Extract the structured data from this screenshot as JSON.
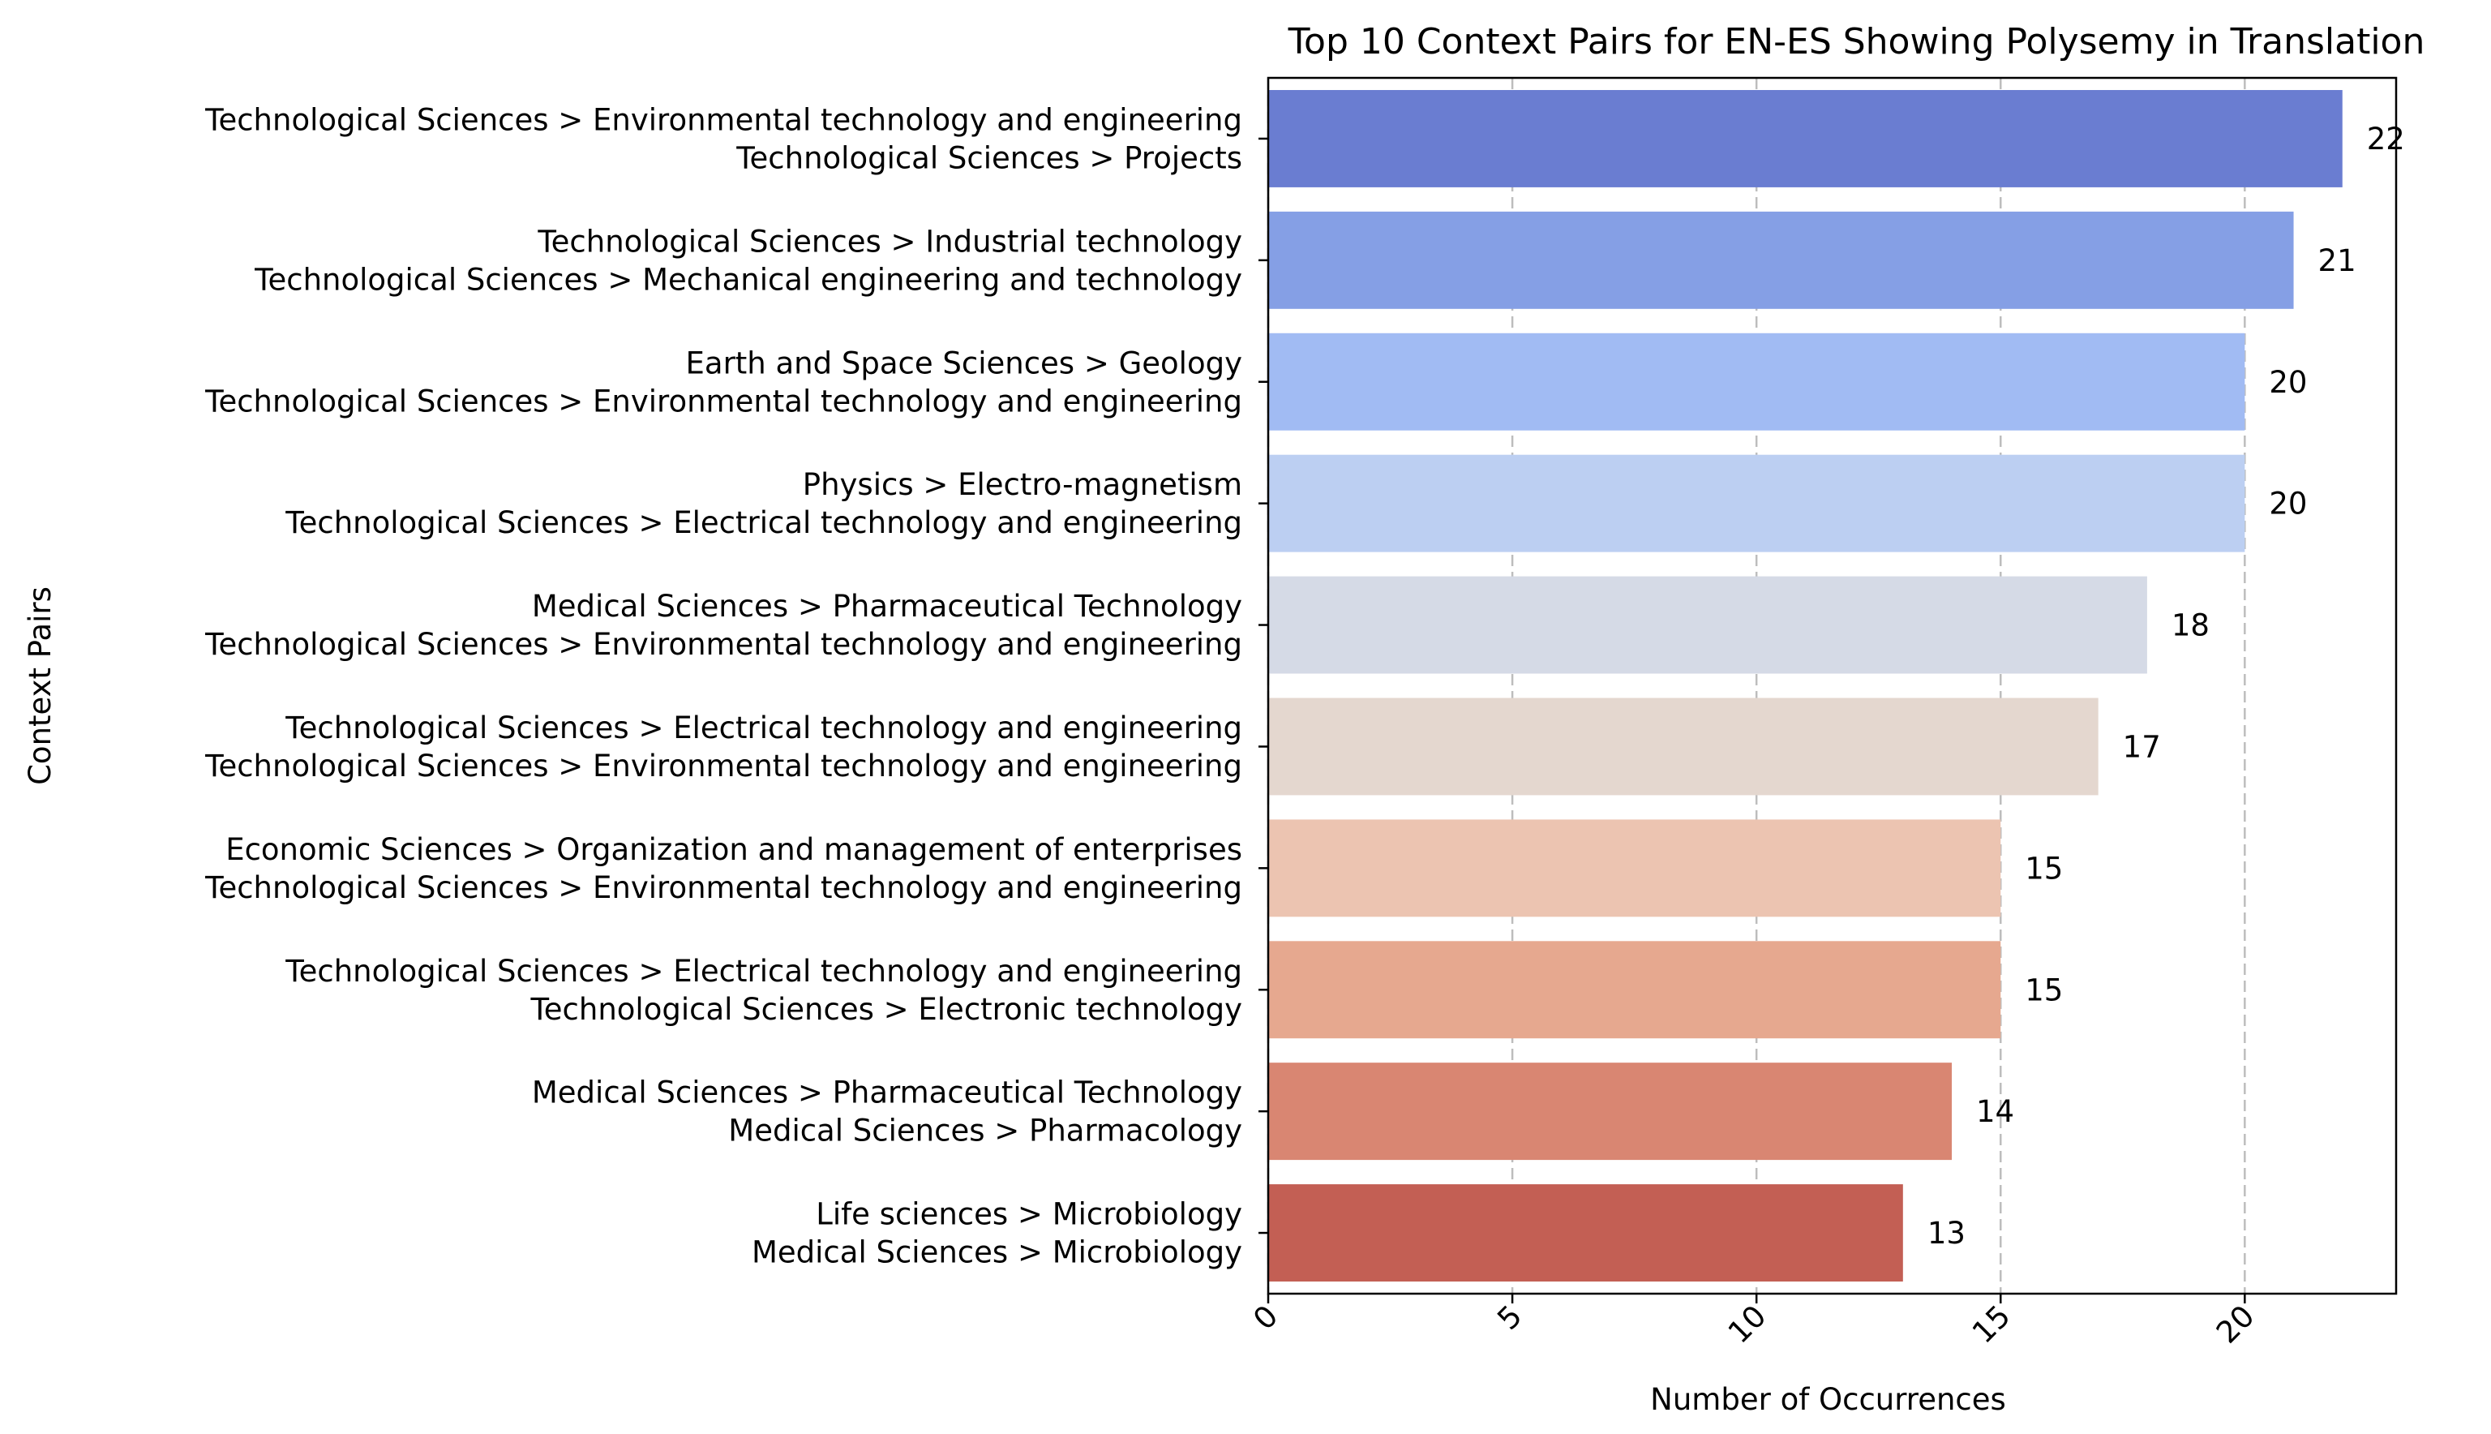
{
  "chart_data": {
    "type": "bar",
    "orientation": "horizontal",
    "title": "Top 10 Context Pairs for EN-ES Showing Polysemy in Translation",
    "xlabel": "Number of Occurrences",
    "ylabel": "Context Pairs",
    "xlim": [
      0,
      23.1
    ],
    "xticks": [
      0,
      5,
      10,
      15,
      20
    ],
    "grid": "x-dashed",
    "categories": [
      [
        "Technological Sciences > Environmental technology and engineering",
        "Technological Sciences > Projects"
      ],
      [
        "Technological Sciences > Industrial technology",
        "Technological Sciences > Mechanical engineering and technology"
      ],
      [
        "Earth and Space Sciences > Geology",
        "Technological Sciences > Environmental technology and engineering"
      ],
      [
        "Physics > Electro-magnetism",
        "Technological Sciences > Electrical technology and engineering"
      ],
      [
        "Medical Sciences > Pharmaceutical Technology",
        "Technological Sciences > Environmental technology and engineering"
      ],
      [
        "Technological Sciences > Electrical technology and engineering",
        "Technological Sciences > Environmental technology and engineering"
      ],
      [
        "Economic Sciences > Organization and management of enterprises",
        "Technological Sciences > Environmental technology and engineering"
      ],
      [
        "Technological Sciences > Electrical technology and engineering",
        "Technological Sciences > Electronic technology"
      ],
      [
        "Medical Sciences > Pharmaceutical Technology",
        "Medical Sciences > Pharmacology"
      ],
      [
        "Life sciences > Microbiology",
        "Medical Sciences > Microbiology"
      ]
    ],
    "values": [
      22,
      21,
      20,
      20,
      18,
      17,
      15,
      15,
      14,
      13
    ],
    "colors": [
      "#6a7dd1",
      "#859fe5",
      "#a1bbf3",
      "#bccff2",
      "#d5dae6",
      "#e4d7cf",
      "#ecc4b1",
      "#e6a88f",
      "#d98672",
      "#c35f54"
    ]
  }
}
